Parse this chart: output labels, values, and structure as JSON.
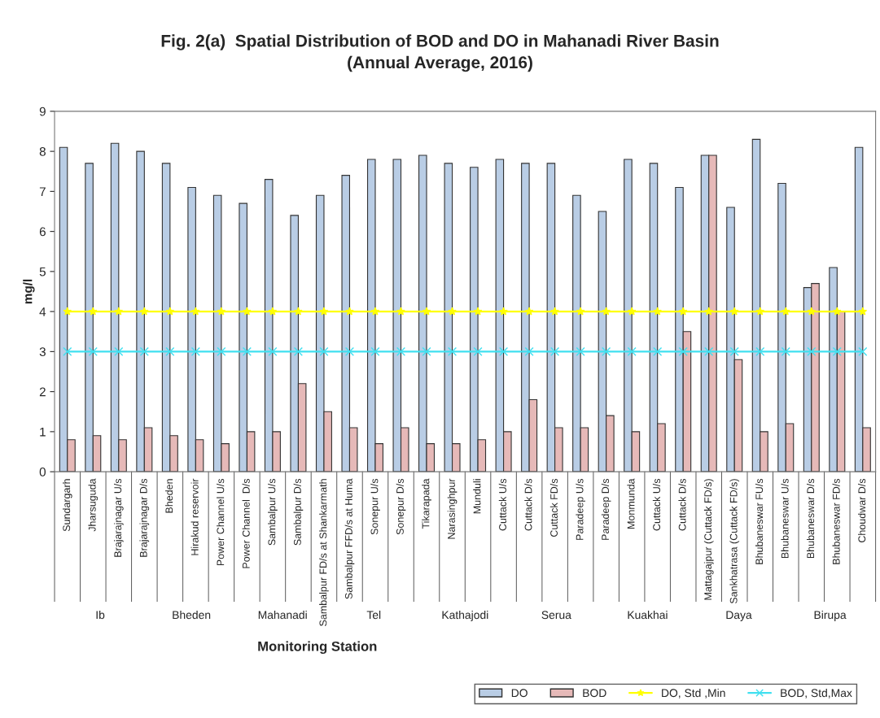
{
  "chart_data": {
    "type": "bar",
    "title": "Fig. 2(a)  Spatial Distribution of BOD and DO in Mahanadi River Basin",
    "subtitle": "(Annual Average, 2016)",
    "xlabel": "Monitoring Station",
    "ylabel": "mg/l",
    "categories": [
      "Sundargarh",
      "Jharsuguda",
      "Brajarajnagar U/s",
      "Brajarajnagar D/s",
      "Bheden",
      "Hirakud reservoir",
      "Power Channel U/s",
      "Power Channel  D/s",
      "Sambalpur U/s",
      "Sambalpur D/s",
      "Sambalpur FD/s at Shankarmath",
      "Sambalpur FFD/s at Huma",
      "Sonepur U/s",
      "Sonepur D/s",
      "Tikarapada",
      "Narasinghpur",
      "Munduli",
      "Cuttack U/s",
      "Cuttack D/s",
      "Cuttack FD/s",
      "Paradeep U/s",
      "Paradeep D/s",
      "Monmunda",
      "Cuttack U/s",
      "Cuttack D/s",
      "Mattagajpur (Cuttack FD/s)",
      "Sankhatrasa (Cuttack FD/s)",
      "Bhubaneswar FU/s",
      "Bhubaneswar U/s",
      "Bhubaneswar D/s",
      "Bhubaneswar FD/s",
      "Choudwar D/s"
    ],
    "series": [
      {
        "name": "DO",
        "color": "#b9cde5",
        "values": [
          8.1,
          7.7,
          8.2,
          8.0,
          7.7,
          7.1,
          6.9,
          6.7,
          7.3,
          6.4,
          6.9,
          7.4,
          7.8,
          7.8,
          7.9,
          7.7,
          7.6,
          7.8,
          7.7,
          7.7,
          6.9,
          6.5,
          7.8,
          7.7,
          7.1,
          7.9,
          6.6,
          8.3,
          7.2,
          4.6,
          5.1,
          8.1
        ]
      },
      {
        "name": "BOD",
        "color": "#e6b9b8",
        "values": [
          0.8,
          0.9,
          0.8,
          1.1,
          0.9,
          0.8,
          0.7,
          1.0,
          1.0,
          2.2,
          1.5,
          1.1,
          0.7,
          1.1,
          0.7,
          0.7,
          0.8,
          1.0,
          1.8,
          1.1,
          1.1,
          1.4,
          1.0,
          1.2,
          3.5,
          7.9,
          2.8,
          1.0,
          1.2,
          4.7,
          4.0,
          1.1
        ]
      },
      {
        "name": "DO, Std ,Min",
        "type": "line",
        "color": "#ffff00",
        "marker": "star",
        "values": [
          4,
          4,
          4,
          4,
          4,
          4,
          4,
          4,
          4,
          4,
          4,
          4,
          4,
          4,
          4,
          4,
          4,
          4,
          4,
          4,
          4,
          4,
          4,
          4,
          4,
          4,
          4,
          4,
          4,
          4,
          4,
          4
        ]
      },
      {
        "name": "BOD, Std,Max",
        "type": "line",
        "color": "#40e0f0",
        "marker": "cross",
        "values": [
          3,
          3,
          3,
          3,
          3,
          3,
          3,
          3,
          3,
          3,
          3,
          3,
          3,
          3,
          3,
          3,
          3,
          3,
          3,
          3,
          3,
          3,
          3,
          3,
          3,
          3,
          3,
          3,
          3,
          3,
          3,
          3
        ]
      }
    ],
    "annotations": [
      "Ib",
      "Bheden",
      "Mahanadi",
      "Tel",
      "Kathajodi",
      "Serua",
      "Kuakhai",
      "Daya",
      "Birupa"
    ],
    "ylim": [
      0,
      9
    ],
    "yticks": [
      0,
      1,
      2,
      3,
      4,
      5,
      6,
      7,
      8,
      9
    ],
    "grid": false,
    "legend": "bottom right"
  }
}
